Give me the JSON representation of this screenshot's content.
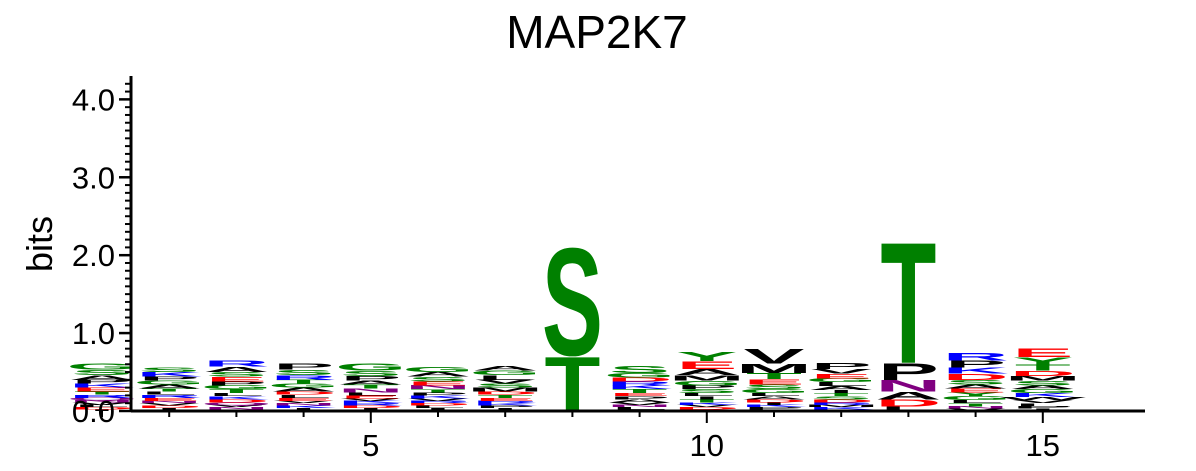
{
  "chart_data": {
    "type": "sequence-logo",
    "title": "MAP2K7",
    "ylabel": "bits",
    "ylim": [
      0,
      4.3
    ],
    "y_ticks": [
      {
        "value": 0,
        "label": "0.0"
      },
      {
        "value": 1,
        "label": "1.0"
      },
      {
        "value": 2,
        "label": "2.0"
      },
      {
        "value": 3,
        "label": "3.0"
      },
      {
        "value": 4,
        "label": "4.0"
      }
    ],
    "x_ticks": [
      {
        "value": 5,
        "label": "5"
      },
      {
        "value": 10,
        "label": "10"
      },
      {
        "value": 15,
        "label": "15"
      }
    ],
    "residue_colors": {
      "G": "#008000",
      "S": "#008000",
      "T": "#008000",
      "Y": "#008000",
      "C": "#008000",
      "N": "#800080",
      "Q": "#800080",
      "K": "#0000ff",
      "R": "#0000ff",
      "H": "#0000ff",
      "D": "#ff0000",
      "E": "#ff0000",
      "A": "#000000",
      "V": "#000000",
      "L": "#000000",
      "I": "#000000",
      "P": "#000000",
      "F": "#000000",
      "M": "#000000",
      "W": "#000000"
    },
    "positions": [
      {
        "position": 1,
        "letters": [
          [
            "G",
            0.08
          ],
          [
            "S",
            0.07
          ],
          [
            "A",
            0.06
          ],
          [
            "E",
            0.05
          ],
          [
            "K",
            0.05
          ],
          [
            "P",
            0.05
          ],
          [
            "R",
            0.04
          ],
          [
            "T",
            0.04
          ],
          [
            "D",
            0.03
          ],
          [
            "L",
            0.03
          ],
          [
            "V",
            0.03
          ],
          [
            "N",
            0.03
          ],
          [
            "Q",
            0.03
          ],
          [
            "I",
            0.02
          ]
        ]
      },
      {
        "position": 2,
        "letters": [
          [
            "K",
            0.06
          ],
          [
            "S",
            0.06
          ],
          [
            "A",
            0.05
          ],
          [
            "G",
            0.05
          ],
          [
            "P",
            0.05
          ],
          [
            "E",
            0.04
          ],
          [
            "R",
            0.04
          ],
          [
            "L",
            0.04
          ],
          [
            "T",
            0.04
          ],
          [
            "D",
            0.03
          ],
          [
            "V",
            0.03
          ],
          [
            "N",
            0.03
          ],
          [
            "Q",
            0.02
          ],
          [
            "I",
            0.02
          ]
        ]
      },
      {
        "position": 3,
        "letters": [
          [
            "R",
            0.08
          ],
          [
            "A",
            0.07
          ],
          [
            "E",
            0.06
          ],
          [
            "S",
            0.06
          ],
          [
            "T",
            0.05
          ],
          [
            "G",
            0.05
          ],
          [
            "P",
            0.05
          ],
          [
            "D",
            0.04
          ],
          [
            "K",
            0.04
          ],
          [
            "L",
            0.04
          ],
          [
            "N",
            0.03
          ],
          [
            "V",
            0.03
          ],
          [
            "Q",
            0.03
          ],
          [
            "I",
            0.02
          ]
        ]
      },
      {
        "position": 4,
        "letters": [
          [
            "P",
            0.08
          ],
          [
            "S",
            0.07
          ],
          [
            "R",
            0.06
          ],
          [
            "A",
            0.05
          ],
          [
            "G",
            0.05
          ],
          [
            "T",
            0.05
          ],
          [
            "E",
            0.04
          ],
          [
            "L",
            0.04
          ],
          [
            "D",
            0.04
          ],
          [
            "K",
            0.03
          ],
          [
            "N",
            0.03
          ],
          [
            "V",
            0.03
          ],
          [
            "Q",
            0.02
          ],
          [
            "I",
            0.02
          ]
        ]
      },
      {
        "position": 5,
        "letters": [
          [
            "G",
            0.09
          ],
          [
            "S",
            0.07
          ],
          [
            "P",
            0.06
          ],
          [
            "N",
            0.05
          ],
          [
            "T",
            0.05
          ],
          [
            "A",
            0.05
          ],
          [
            "E",
            0.04
          ],
          [
            "L",
            0.04
          ],
          [
            "D",
            0.03
          ],
          [
            "R",
            0.03
          ],
          [
            "K",
            0.03
          ],
          [
            "V",
            0.03
          ],
          [
            "Q",
            0.02
          ],
          [
            "I",
            0.02
          ]
        ]
      },
      {
        "position": 6,
        "letters": [
          [
            "G",
            0.07
          ],
          [
            "S",
            0.06
          ],
          [
            "A",
            0.06
          ],
          [
            "N",
            0.05
          ],
          [
            "E",
            0.05
          ],
          [
            "K",
            0.04
          ],
          [
            "P",
            0.04
          ],
          [
            "T",
            0.04
          ],
          [
            "L",
            0.03
          ],
          [
            "D",
            0.03
          ],
          [
            "R",
            0.03
          ],
          [
            "V",
            0.03
          ],
          [
            "Q",
            0.02
          ],
          [
            "I",
            0.02
          ]
        ]
      },
      {
        "position": 7,
        "letters": [
          [
            "L",
            0.06
          ],
          [
            "G",
            0.06
          ],
          [
            "A",
            0.06
          ],
          [
            "M",
            0.05
          ],
          [
            "S",
            0.05
          ],
          [
            "V",
            0.05
          ],
          [
            "E",
            0.04
          ],
          [
            "T",
            0.04
          ],
          [
            "D",
            0.04
          ],
          [
            "P",
            0.03
          ],
          [
            "K",
            0.03
          ],
          [
            "R",
            0.03
          ],
          [
            "N",
            0.02
          ],
          [
            "I",
            0.02
          ]
        ]
      },
      {
        "position": 8,
        "letters": [
          [
            "S",
            1.42
          ],
          [
            "T",
            0.72
          ]
        ]
      },
      {
        "position": 9,
        "letters": [
          [
            "S",
            0.09
          ],
          [
            "G",
            0.06
          ],
          [
            "T",
            0.05
          ],
          [
            "K",
            0.05
          ],
          [
            "R",
            0.05
          ],
          [
            "D",
            0.05
          ],
          [
            "A",
            0.04
          ],
          [
            "P",
            0.04
          ],
          [
            "E",
            0.04
          ],
          [
            "L",
            0.03
          ],
          [
            "N",
            0.03
          ],
          [
            "V",
            0.03
          ],
          [
            "Q",
            0.02
          ]
        ]
      },
      {
        "position": 10,
        "letters": [
          [
            "Y",
            0.12
          ],
          [
            "E",
            0.1
          ],
          [
            "A",
            0.08
          ],
          [
            "M",
            0.07
          ],
          [
            "G",
            0.06
          ],
          [
            "S",
            0.05
          ],
          [
            "P",
            0.05
          ],
          [
            "T",
            0.04
          ],
          [
            "I",
            0.04
          ],
          [
            "L",
            0.04
          ],
          [
            "D",
            0.03
          ],
          [
            "V",
            0.03
          ],
          [
            "K",
            0.03
          ],
          [
            "N",
            0.02
          ]
        ]
      },
      {
        "position": 11,
        "letters": [
          [
            "V",
            0.2
          ],
          [
            "M",
            0.12
          ],
          [
            "T",
            0.08
          ],
          [
            "E",
            0.07
          ],
          [
            "S",
            0.06
          ],
          [
            "G",
            0.05
          ],
          [
            "D",
            0.04
          ],
          [
            "A",
            0.04
          ],
          [
            "L",
            0.04
          ],
          [
            "P",
            0.03
          ],
          [
            "K",
            0.03
          ],
          [
            "I",
            0.03
          ],
          [
            "Q",
            0.02
          ]
        ]
      },
      {
        "position": 12,
        "letters": [
          [
            "P",
            0.08
          ],
          [
            "E",
            0.06
          ],
          [
            "V",
            0.06
          ],
          [
            "A",
            0.05
          ],
          [
            "L",
            0.05
          ],
          [
            "G",
            0.05
          ],
          [
            "D",
            0.04
          ],
          [
            "S",
            0.04
          ],
          [
            "T",
            0.04
          ],
          [
            "I",
            0.04
          ],
          [
            "K",
            0.03
          ],
          [
            "M",
            0.03
          ],
          [
            "R",
            0.03
          ],
          [
            "N",
            0.02
          ]
        ]
      },
      {
        "position": 13,
        "letters": [
          [
            "T",
            1.6
          ],
          [
            "P",
            0.22
          ],
          [
            "N",
            0.15
          ],
          [
            "A",
            0.1
          ],
          [
            "D",
            0.09
          ],
          [
            "L",
            0.06
          ]
        ]
      },
      {
        "position": 14,
        "letters": [
          [
            "R",
            0.1
          ],
          [
            "P",
            0.09
          ],
          [
            "D",
            0.08
          ],
          [
            "K",
            0.08
          ],
          [
            "S",
            0.06
          ],
          [
            "G",
            0.05
          ],
          [
            "Y",
            0.05
          ],
          [
            "E",
            0.05
          ],
          [
            "A",
            0.05
          ],
          [
            "T",
            0.04
          ],
          [
            "L",
            0.04
          ],
          [
            "V",
            0.03
          ],
          [
            "N",
            0.03
          ]
        ]
      },
      {
        "position": 15,
        "letters": [
          [
            "E",
            0.11
          ],
          [
            "Y",
            0.09
          ],
          [
            "T",
            0.08
          ],
          [
            "D",
            0.07
          ],
          [
            "S",
            0.06
          ],
          [
            "M",
            0.06
          ],
          [
            "K",
            0.05
          ],
          [
            "G",
            0.05
          ],
          [
            "A",
            0.05
          ],
          [
            "L",
            0.04
          ],
          [
            "V",
            0.04
          ],
          [
            "W",
            0.04
          ],
          [
            "I",
            0.03
          ],
          [
            "P",
            0.03
          ]
        ]
      }
    ]
  }
}
